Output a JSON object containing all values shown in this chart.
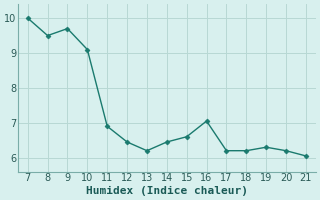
{
  "x": [
    7,
    8,
    9,
    10,
    11,
    12,
    13,
    14,
    15,
    16,
    17,
    18,
    19,
    20,
    21
  ],
  "y": [
    10.0,
    9.5,
    9.7,
    9.1,
    6.9,
    6.45,
    6.2,
    6.45,
    6.6,
    7.05,
    6.2,
    6.2,
    6.3,
    6.2,
    6.05
  ],
  "line_color": "#1a7a6e",
  "marker_color": "#1a7a6e",
  "bg_color": "#d8f0ee",
  "grid_color": "#b8d8d4",
  "spine_color": "#7aada8",
  "xlabel": "Humidex (Indice chaleur)",
  "xlabel_fontsize": 8,
  "tick_fontsize": 7,
  "ylabel_ticks": [
    6,
    7,
    8,
    9,
    10
  ],
  "xtick_min": 7,
  "xtick_max": 21,
  "ylim": [
    5.6,
    10.4
  ],
  "xlim": [
    6.5,
    21.5
  ]
}
